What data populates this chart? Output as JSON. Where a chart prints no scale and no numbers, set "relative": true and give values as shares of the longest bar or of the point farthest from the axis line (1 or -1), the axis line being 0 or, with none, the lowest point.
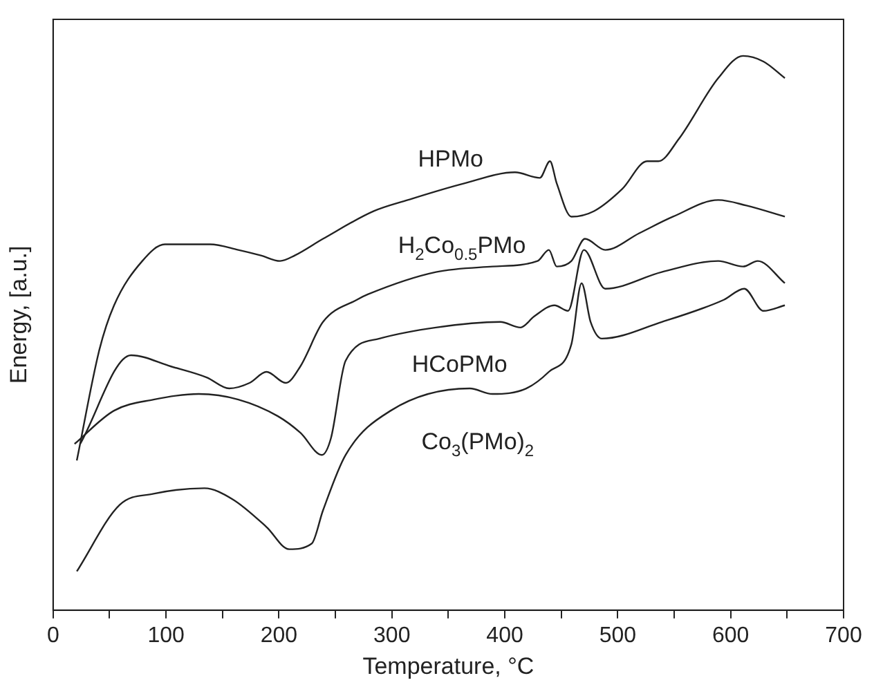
{
  "chart_data": {
    "type": "line",
    "relative": true,
    "xlabel": "Temperature, °C",
    "ylabel": "Energy, [a.u.]",
    "xlim": [
      0,
      700
    ],
    "xticks": [
      0,
      {
        "value": 50,
        "label": null
      },
      100,
      {
        "value": 150,
        "label": null
      },
      200,
      {
        "value": 250,
        "label": null
      },
      300,
      {
        "value": 350,
        "label": null
      },
      400,
      {
        "value": 450,
        "label": null
      },
      500,
      {
        "value": 550,
        "label": null
      },
      600,
      {
        "value": 650,
        "label": null
      },
      700
    ],
    "grid": false,
    "legend": false,
    "marker": "none",
    "line_style": "solid",
    "series": [
      {
        "name": "HPMo",
        "color": "#222222",
        "x": [
          21,
          41,
          54,
          79,
          99,
          139,
          164,
          184,
          201,
          214,
          239,
          284,
          314,
          364,
          409,
          431,
          440,
          446,
          459,
          479,
          504,
          526,
          536,
          554,
          589,
          611,
          629,
          648
        ],
        "values": [
          0.27,
          0.47,
          0.55,
          0.63,
          0.66,
          0.66,
          0.65,
          0.64,
          0.63,
          0.64,
          0.67,
          0.72,
          0.74,
          0.77,
          0.79,
          0.78,
          0.81,
          0.77,
          0.71,
          0.72,
          0.76,
          0.81,
          0.81,
          0.85,
          0.96,
          1.0,
          0.99,
          0.96
        ]
      },
      {
        "name": "H$_{2}$Co$_{0.5}$PMo",
        "color": "#222222",
        "x": [
          24,
          69,
          104,
          136,
          156,
          174,
          189,
          206,
          219,
          239,
          269,
          279,
          339,
          389,
          429,
          439,
          446,
          459,
          471,
          489,
          519,
          549,
          589,
          614,
          648
        ],
        "values": [
          0.3,
          0.46,
          0.44,
          0.42,
          0.4,
          0.41,
          0.43,
          0.41,
          0.44,
          0.52,
          0.56,
          0.57,
          0.61,
          0.62,
          0.63,
          0.65,
          0.62,
          0.63,
          0.67,
          0.65,
          0.68,
          0.71,
          0.74,
          0.73,
          0.71
        ]
      },
      {
        "name": "HCoPMo",
        "color": "#222222",
        "x": [
          19,
          54,
          89,
          129,
          164,
          199,
          219,
          238,
          246,
          259,
          289,
          339,
          396,
          414,
          426,
          444,
          456,
          470,
          489,
          539,
          589,
          611,
          624,
          648
        ],
        "values": [
          0.3,
          0.36,
          0.38,
          0.39,
          0.38,
          0.35,
          0.32,
          0.28,
          0.31,
          0.45,
          0.49,
          0.51,
          0.52,
          0.51,
          0.53,
          0.55,
          0.54,
          0.65,
          0.58,
          0.61,
          0.63,
          0.62,
          0.63,
          0.59
        ]
      },
      {
        "name": "Co$_{3}$(PMo)$_{2}$",
        "color": "#222222",
        "x": [
          21,
          59,
          89,
          134,
          159,
          189,
          209,
          229,
          239,
          259,
          299,
          369,
          389,
          419,
          439,
          459,
          468,
          476,
          486,
          539,
          594,
          612,
          629,
          648
        ],
        "values": [
          0.07,
          0.19,
          0.21,
          0.22,
          0.2,
          0.15,
          0.11,
          0.12,
          0.18,
          0.28,
          0.36,
          0.4,
          0.39,
          0.4,
          0.43,
          0.48,
          0.59,
          0.52,
          0.49,
          0.52,
          0.56,
          0.58,
          0.54,
          0.55
        ]
      }
    ]
  }
}
